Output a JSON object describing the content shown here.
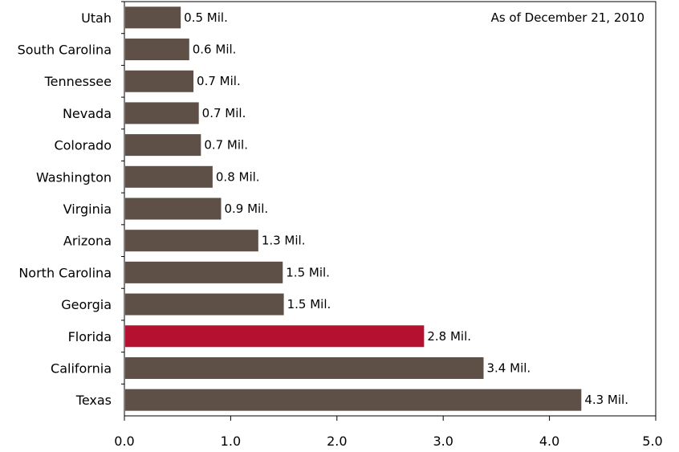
{
  "chart_data": {
    "type": "bar",
    "orientation": "horizontal",
    "categories": [
      "Utah",
      "South Carolina",
      "Tennessee",
      "Nevada",
      "Colorado",
      "Washington",
      "Virginia",
      "Arizona",
      "North Carolina",
      "Georgia",
      "Florida",
      "California",
      "Texas"
    ],
    "values": [
      0.53,
      0.61,
      0.65,
      0.7,
      0.72,
      0.83,
      0.91,
      1.26,
      1.49,
      1.5,
      2.82,
      3.38,
      4.3
    ],
    "value_labels": [
      "0.5 Mil.",
      "0.6 Mil.",
      "0.7 Mil.",
      "0.7 Mil.",
      "0.7 Mil.",
      "0.8 Mil.",
      "0.9 Mil.",
      "1.3 Mil.",
      "1.5 Mil.",
      "1.5 Mil.",
      "2.8 Mil.",
      "3.4 Mil.",
      "4.3 Mil."
    ],
    "highlight": "Florida",
    "colors": {
      "bar": "#5e5046",
      "highlight": "#b5102f",
      "axis": "#000000"
    },
    "xlim": [
      0,
      5
    ],
    "xticks": [
      0,
      1,
      2,
      3,
      4,
      5
    ],
    "xtick_labels": [
      "0.0",
      "1.0",
      "2.0",
      "3.0",
      "4.0",
      "5.0"
    ],
    "annotation": "As of December 21, 2010",
    "grid": false,
    "title": "",
    "xlabel": "",
    "ylabel": ""
  }
}
